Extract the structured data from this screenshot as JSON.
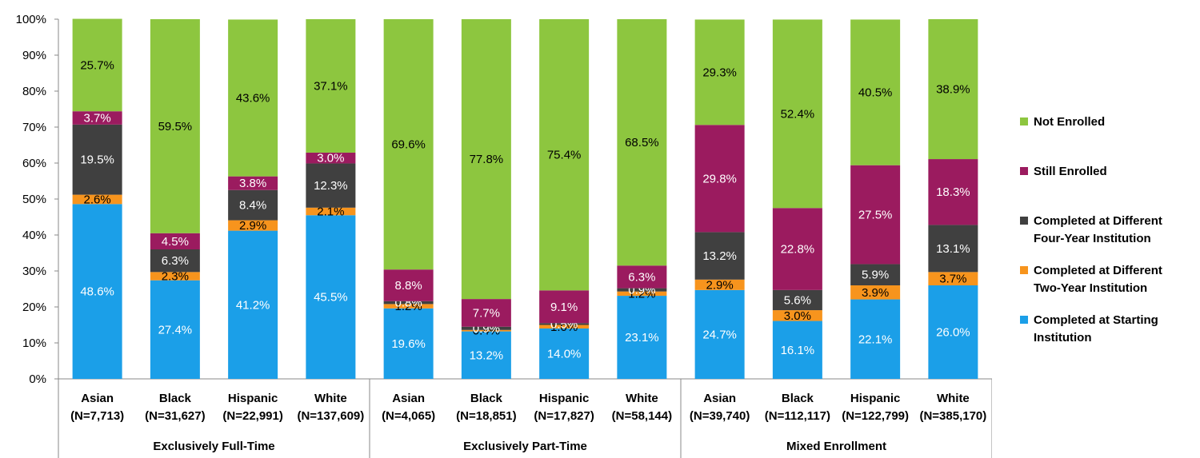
{
  "chart_data": {
    "type": "bar",
    "stacked": true,
    "percent_stacked": true,
    "ylim": [
      0,
      100
    ],
    "yticks": [
      "0%",
      "10%",
      "20%",
      "30%",
      "40%",
      "50%",
      "60%",
      "70%",
      "80%",
      "90%",
      "100%"
    ],
    "groups": [
      {
        "name": "Exclusively Full-Time",
        "categories": [
          {
            "line1": "Asian",
            "line2": "(N=7,713)"
          },
          {
            "line1": "Black",
            "line2": "(N=31,627)"
          },
          {
            "line1": "Hispanic",
            "line2": "(N=22,991)"
          },
          {
            "line1": "White",
            "line2": "(N=137,609)"
          }
        ]
      },
      {
        "name": "Exclusively Part-Time",
        "categories": [
          {
            "line1": "Asian",
            "line2": "(N=4,065)"
          },
          {
            "line1": "Black",
            "line2": "(N=18,851)"
          },
          {
            "line1": "Hispanic",
            "line2": "(N=17,827)"
          },
          {
            "line1": "White",
            "line2": "(N=58,144)"
          }
        ]
      },
      {
        "name": "Mixed Enrollment",
        "categories": [
          {
            "line1": "Asian",
            "line2": "(N=39,740)"
          },
          {
            "line1": "Black",
            "line2": "(N=112,117)"
          },
          {
            "line1": "Hispanic",
            "line2": "(N=122,799)"
          },
          {
            "line1": "White",
            "line2": "(N=385,170)"
          }
        ]
      }
    ],
    "series": [
      {
        "name": "Completed at Starting Institution",
        "color": "#1b9fe8",
        "label_color": "#ffffff",
        "values": [
          48.6,
          27.4,
          41.2,
          45.5,
          19.6,
          13.2,
          14.0,
          23.1,
          24.7,
          16.1,
          22.1,
          26.0
        ],
        "labels": [
          "48.6%",
          "27.4%",
          "41.2%",
          "45.5%",
          "19.6%",
          "13.2%",
          "14.0%",
          "23.1%",
          "24.7%",
          "16.1%",
          "22.1%",
          "26.0%"
        ]
      },
      {
        "name": "Completed at Different Two-Year Institution",
        "color": "#f7941d",
        "label_color": "#000000",
        "values": [
          2.6,
          2.3,
          2.9,
          2.1,
          1.2,
          0.4,
          1.0,
          1.2,
          2.9,
          3.0,
          3.9,
          3.7
        ],
        "labels": [
          "2.6%",
          "2.3%",
          "2.9%",
          "2.1%",
          "1.2%",
          "0.4%",
          "1.0%",
          "1.2%",
          "2.9%",
          "3.0%",
          "3.9%",
          "3.7%"
        ]
      },
      {
        "name": "Completed at Different Four-Year Institution",
        "color": "#404040",
        "label_color": "#ffffff",
        "values": [
          19.5,
          6.3,
          8.4,
          12.3,
          0.8,
          0.9,
          0.5,
          0.9,
          13.2,
          5.6,
          5.9,
          13.1
        ],
        "labels": [
          "19.5%",
          "6.3%",
          "8.4%",
          "12.3%",
          "0.8%",
          "0.9%",
          "0.5%",
          "0.9%",
          "13.2%",
          "5.6%",
          "5.9%",
          "13.1%"
        ]
      },
      {
        "name": "Still Enrolled",
        "color": "#9b1b5f",
        "label_color": "#ffffff",
        "values": [
          3.7,
          4.5,
          3.8,
          3.0,
          8.8,
          7.7,
          9.1,
          6.3,
          29.8,
          22.8,
          27.5,
          18.3
        ],
        "labels": [
          "3.7%",
          "4.5%",
          "3.8%",
          "3.0%",
          "8.8%",
          "7.7%",
          "9.1%",
          "6.3%",
          "29.8%",
          "22.8%",
          "27.5%",
          "18.3%"
        ]
      },
      {
        "name": "Not Enrolled",
        "color": "#8dc63f",
        "label_color": "#000000",
        "values": [
          25.7,
          59.5,
          43.6,
          37.1,
          69.6,
          77.8,
          75.4,
          68.5,
          29.3,
          52.4,
          40.5,
          38.9
        ],
        "labels": [
          "25.7%",
          "59.5%",
          "43.6%",
          "37.1%",
          "69.6%",
          "77.8%",
          "75.4%",
          "68.5%",
          "29.3%",
          "52.4%",
          "40.5%",
          "38.9%"
        ]
      }
    ],
    "legend": [
      {
        "lines": [
          "Not Enrolled"
        ],
        "color": "#8dc63f"
      },
      {
        "lines": [
          "Still Enrolled"
        ],
        "color": "#9b1b5f"
      },
      {
        "lines": [
          "Completed at Different",
          "Four-Year Institution"
        ],
        "color": "#404040"
      },
      {
        "lines": [
          "Completed at Different",
          "Two-Year Institution"
        ],
        "color": "#f7941d"
      },
      {
        "lines": [
          "Completed at Starting",
          "Institution"
        ],
        "color": "#1b9fe8"
      }
    ]
  }
}
